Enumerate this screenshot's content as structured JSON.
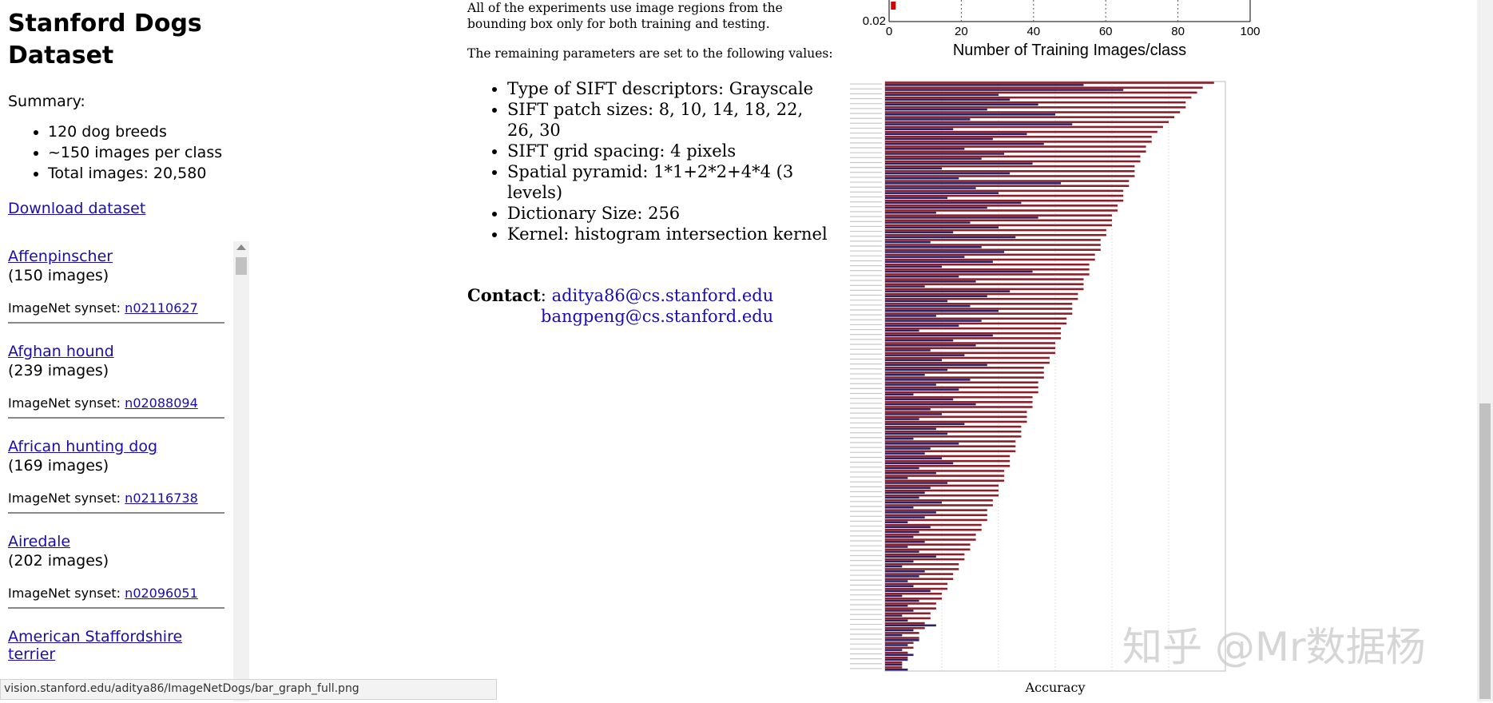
{
  "sidebar": {
    "title": "Stanford Dogs Dataset",
    "summary_heading": "Summary:",
    "summary_items": [
      "120 dog breeds",
      "~150 images per class",
      "Total images: 20,580"
    ],
    "download_label": "Download dataset",
    "synset_prefix": "ImageNet synset:",
    "breeds": [
      {
        "name": "Affenpinscher",
        "count": "(150 images)",
        "synset": "n02110627"
      },
      {
        "name": "Afghan hound",
        "count": "(239 images)",
        "synset": "n02088094"
      },
      {
        "name": "African hunting dog",
        "count": "(169 images)",
        "synset": "n02116738"
      },
      {
        "name": "Airedale",
        "count": "(202 images)",
        "synset": "n02096051"
      },
      {
        "name": "American Staffordshire terrier",
        "count": "",
        "synset": ""
      }
    ]
  },
  "middle": {
    "experiments_text": "All of the experiments use image regions from the bounding box only for both training and testing.",
    "params_intro": "The remaining parameters are set to the following values:",
    "params": [
      "Type of SIFT descriptors: Grayscale",
      "SIFT patch sizes: 8, 10, 14, 18, 22, 26, 30",
      "SIFT grid spacing: 4 pixels",
      "Spatial pyramid: 1*1+2*2+4*4 (3 levels)",
      "Dictionary Size: 256",
      "Kernel: histogram intersection kernel"
    ],
    "contact_label": "Contact",
    "contact_emails": [
      "aditya86@cs.stanford.edu",
      "bangpeng@cs.stanford.edu"
    ]
  },
  "status_bar": {
    "url": "vision.stanford.edu/aditya86/ImageNetDogs/bar_graph_full.png"
  },
  "watermark": "知乎 @Mr数据杨",
  "chart_data": [
    {
      "type": "line",
      "xlabel": "Number of Training Images/class",
      "ylabel": "",
      "x_ticks": [
        0,
        20,
        40,
        60,
        80,
        100
      ],
      "y_ticks_visible": [
        "0.02"
      ],
      "xlim": [
        0,
        100
      ],
      "series": [
        {
          "color": "#d40000",
          "x": [
            0.5
          ],
          "y": [
            0.025
          ]
        }
      ]
    },
    {
      "type": "bar",
      "orientation": "horizontal",
      "xlabel": "Accuracy",
      "xlim": [
        0,
        0.6
      ],
      "colors": {
        "series_a": "#8b1f2a",
        "series_b": "#2a2466"
      },
      "series_a": [
        0.58,
        0.56,
        0.55,
        0.54,
        0.53,
        0.53,
        0.52,
        0.51,
        0.5,
        0.49,
        0.48,
        0.47,
        0.47,
        0.46,
        0.46,
        0.45,
        0.45,
        0.44,
        0.44,
        0.44,
        0.43,
        0.43,
        0.42,
        0.42,
        0.42,
        0.41,
        0.41,
        0.4,
        0.4,
        0.4,
        0.39,
        0.39,
        0.38,
        0.38,
        0.38,
        0.37,
        0.37,
        0.36,
        0.36,
        0.36,
        0.35,
        0.35,
        0.35,
        0.34,
        0.34,
        0.33,
        0.33,
        0.33,
        0.32,
        0.32,
        0.31,
        0.31,
        0.31,
        0.3,
        0.3,
        0.3,
        0.29,
        0.29,
        0.28,
        0.28,
        0.28,
        0.27,
        0.27,
        0.27,
        0.26,
        0.26,
        0.26,
        0.25,
        0.25,
        0.25,
        0.24,
        0.24,
        0.24,
        0.23,
        0.23,
        0.23,
        0.22,
        0.22,
        0.22,
        0.21,
        0.21,
        0.21,
        0.2,
        0.2,
        0.2,
        0.19,
        0.19,
        0.18,
        0.18,
        0.18,
        0.17,
        0.17,
        0.16,
        0.16,
        0.15,
        0.15,
        0.14,
        0.14,
        0.13,
        0.13,
        0.12,
        0.12,
        0.11,
        0.11,
        0.1,
        0.1,
        0.09,
        0.09,
        0.08,
        0.08,
        0.07,
        0.07,
        0.06,
        0.06,
        0.05,
        0.05,
        0.04,
        0.04,
        0.03,
        0.03
      ],
      "series_b": [
        0.35,
        0.42,
        0.2,
        0.22,
        0.27,
        0.18,
        0.3,
        0.15,
        0.33,
        0.12,
        0.25,
        0.19,
        0.28,
        0.14,
        0.21,
        0.17,
        0.26,
        0.1,
        0.22,
        0.13,
        0.31,
        0.16,
        0.2,
        0.11,
        0.24,
        0.18,
        0.09,
        0.27,
        0.15,
        0.2,
        0.12,
        0.23,
        0.08,
        0.17,
        0.21,
        0.14,
        0.19,
        0.1,
        0.26,
        0.13,
        0.16,
        0.07,
        0.22,
        0.18,
        0.11,
        0.15,
        0.2,
        0.09,
        0.17,
        0.13,
        0.06,
        0.19,
        0.12,
        0.16,
        0.08,
        0.14,
        0.1,
        0.18,
        0.11,
        0.07,
        0.15,
        0.09,
        0.13,
        0.05,
        0.12,
        0.16,
        0.08,
        0.1,
        0.06,
        0.14,
        0.09,
        0.11,
        0.05,
        0.13,
        0.08,
        0.07,
        0.1,
        0.12,
        0.06,
        0.09,
        0.04,
        0.11,
        0.08,
        0.07,
        0.06,
        0.1,
        0.05,
        0.09,
        0.07,
        0.04,
        0.08,
        0.06,
        0.05,
        0.07,
        0.04,
        0.06,
        0.09,
        0.05,
        0.03,
        0.07,
        0.06,
        0.04,
        0.05,
        0.08,
        0.03,
        0.06,
        0.04,
        0.05,
        0.03,
        0.04,
        0.09,
        0.05,
        0.03,
        0.06,
        0.04,
        0.03,
        0.05,
        0.04,
        0.03,
        0.04
      ]
    }
  ]
}
